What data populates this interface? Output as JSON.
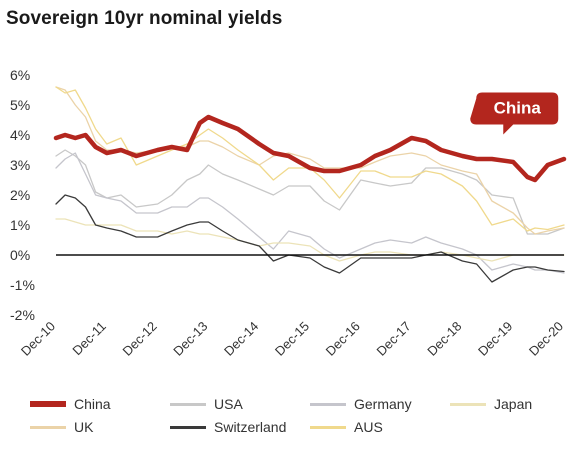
{
  "chart_data": {
    "type": "line",
    "title": "Sovereign 10yr nominal yields",
    "xlabel": "",
    "ylabel": "",
    "y_ticks": [
      "6%",
      "5%",
      "4%",
      "3%",
      "2%",
      "1%",
      "0%",
      "-1%",
      "-2%"
    ],
    "y_tick_values": [
      6,
      5,
      4,
      3,
      2,
      1,
      0,
      -1,
      -2
    ],
    "ylim": [
      -2,
      6
    ],
    "x_ticks": [
      "Dec-10",
      "Dec-11",
      "Dec-12",
      "Dec-13",
      "Dec-14",
      "Dec-15",
      "Dec-16",
      "Dec-17",
      "Dec-18",
      "Dec-19",
      "Dec-20"
    ],
    "xlim": [
      2010.92,
      2020.92
    ],
    "zero_line": true,
    "grid": false,
    "legend_position": "bottom",
    "annotation": {
      "text": "China",
      "series": "China",
      "x": 2020.0,
      "y": 4.75
    },
    "series": [
      {
        "name": "China",
        "color": "#b3261e",
        "width": 4.5,
        "x": [
          2010.92,
          2011.1,
          2011.3,
          2011.5,
          2011.7,
          2011.92,
          2012.2,
          2012.5,
          2012.92,
          2013.2,
          2013.5,
          2013.75,
          2013.92,
          2014.2,
          2014.5,
          2014.92,
          2015.2,
          2015.5,
          2015.92,
          2016.2,
          2016.5,
          2016.92,
          2017.2,
          2017.5,
          2017.92,
          2018.2,
          2018.5,
          2018.92,
          2019.2,
          2019.5,
          2019.92,
          2020.2,
          2020.35,
          2020.6,
          2020.92
        ],
        "y": [
          3.9,
          4.0,
          3.9,
          4.0,
          3.6,
          3.4,
          3.5,
          3.3,
          3.5,
          3.6,
          3.5,
          4.4,
          4.6,
          4.4,
          4.2,
          3.7,
          3.4,
          3.3,
          2.9,
          2.8,
          2.8,
          3.0,
          3.3,
          3.5,
          3.9,
          3.8,
          3.5,
          3.3,
          3.2,
          3.2,
          3.1,
          2.6,
          2.5,
          3.0,
          3.2
        ]
      },
      {
        "name": "USA",
        "color": "#c8c8c8",
        "width": 1.3,
        "x": [
          2010.92,
          2011.1,
          2011.3,
          2011.5,
          2011.7,
          2011.92,
          2012.2,
          2012.5,
          2012.92,
          2013.2,
          2013.5,
          2013.75,
          2013.92,
          2014.2,
          2014.5,
          2014.92,
          2015.2,
          2015.5,
          2015.92,
          2016.2,
          2016.5,
          2016.92,
          2017.2,
          2017.5,
          2017.92,
          2018.2,
          2018.5,
          2018.92,
          2019.2,
          2019.5,
          2019.92,
          2020.2,
          2020.35,
          2020.6,
          2020.92
        ],
        "y": [
          3.3,
          3.5,
          3.3,
          3.0,
          2.1,
          1.9,
          2.0,
          1.6,
          1.7,
          2.0,
          2.5,
          2.7,
          3.0,
          2.7,
          2.5,
          2.2,
          2.0,
          2.3,
          2.3,
          1.8,
          1.5,
          2.5,
          2.4,
          2.3,
          2.4,
          2.9,
          2.9,
          2.7,
          2.5,
          2.0,
          1.9,
          0.7,
          0.7,
          0.7,
          0.9
        ]
      },
      {
        "name": "Germany",
        "color": "#c5c5cc",
        "width": 1.3,
        "x": [
          2010.92,
          2011.1,
          2011.3,
          2011.5,
          2011.7,
          2011.92,
          2012.2,
          2012.5,
          2012.92,
          2013.2,
          2013.5,
          2013.75,
          2013.92,
          2014.2,
          2014.5,
          2014.92,
          2015.2,
          2015.5,
          2015.92,
          2016.2,
          2016.5,
          2016.92,
          2017.2,
          2017.5,
          2017.92,
          2018.2,
          2018.5,
          2018.92,
          2019.2,
          2019.5,
          2019.92,
          2020.2,
          2020.35,
          2020.6,
          2020.92
        ],
        "y": [
          2.9,
          3.2,
          3.4,
          2.7,
          2.0,
          1.9,
          1.8,
          1.4,
          1.4,
          1.6,
          1.6,
          1.9,
          1.9,
          1.6,
          1.2,
          0.6,
          0.2,
          0.8,
          0.6,
          0.2,
          -0.1,
          0.2,
          0.4,
          0.5,
          0.4,
          0.6,
          0.4,
          0.2,
          0.0,
          -0.5,
          -0.3,
          -0.4,
          -0.5,
          -0.5,
          -0.6
        ]
      },
      {
        "name": "Japan",
        "color": "#ece3b8",
        "width": 1.3,
        "x": [
          2010.92,
          2011.1,
          2011.3,
          2011.5,
          2011.7,
          2011.92,
          2012.2,
          2012.5,
          2012.92,
          2013.2,
          2013.5,
          2013.75,
          2013.92,
          2014.2,
          2014.5,
          2014.92,
          2015.2,
          2015.5,
          2015.92,
          2016.2,
          2016.5,
          2016.92,
          2017.2,
          2017.5,
          2017.92,
          2018.2,
          2018.5,
          2018.92,
          2019.2,
          2019.5,
          2019.92,
          2020.2,
          2020.35,
          2020.6,
          2020.92
        ],
        "y": [
          1.2,
          1.2,
          1.1,
          1.0,
          1.0,
          1.0,
          1.0,
          0.8,
          0.8,
          0.7,
          0.8,
          0.7,
          0.7,
          0.6,
          0.5,
          0.3,
          0.4,
          0.4,
          0.3,
          0.0,
          -0.2,
          0.0,
          0.1,
          0.1,
          0.0,
          0.0,
          0.1,
          0.0,
          -0.1,
          -0.2,
          0.0,
          0.0,
          0.0,
          0.0,
          0.0
        ]
      },
      {
        "name": "UK",
        "color": "#ebd3a8",
        "width": 1.3,
        "x": [
          2010.92,
          2011.1,
          2011.3,
          2011.5,
          2011.7,
          2011.92,
          2012.2,
          2012.5,
          2012.92,
          2013.2,
          2013.5,
          2013.75,
          2013.92,
          2014.2,
          2014.5,
          2014.92,
          2015.2,
          2015.5,
          2015.92,
          2016.2,
          2016.5,
          2016.92,
          2017.2,
          2017.5,
          2017.92,
          2018.2,
          2018.5,
          2018.92,
          2019.2,
          2019.5,
          2019.92,
          2020.2,
          2020.35,
          2020.6,
          2020.92
        ],
        "y": [
          5.6,
          5.5,
          5.0,
          4.6,
          3.8,
          3.5,
          3.5,
          3.4,
          3.5,
          3.6,
          3.6,
          3.8,
          3.8,
          3.6,
          3.3,
          3.0,
          3.3,
          3.4,
          3.2,
          2.9,
          2.9,
          2.9,
          3.1,
          3.3,
          3.4,
          3.3,
          3.0,
          2.8,
          2.7,
          1.8,
          1.4,
          0.9,
          0.7,
          0.8,
          0.9
        ]
      },
      {
        "name": "Switzerland",
        "color": "#3a3a3a",
        "width": 1.3,
        "x": [
          2010.92,
          2011.1,
          2011.3,
          2011.5,
          2011.7,
          2011.92,
          2012.2,
          2012.5,
          2012.92,
          2013.2,
          2013.5,
          2013.75,
          2013.92,
          2014.2,
          2014.5,
          2014.92,
          2015.2,
          2015.5,
          2015.92,
          2016.2,
          2016.5,
          2016.92,
          2017.2,
          2017.5,
          2017.92,
          2018.2,
          2018.5,
          2018.92,
          2019.2,
          2019.5,
          2019.92,
          2020.2,
          2020.35,
          2020.6,
          2020.92
        ],
        "y": [
          1.7,
          2.0,
          1.9,
          1.6,
          1.0,
          0.9,
          0.8,
          0.6,
          0.6,
          0.8,
          1.0,
          1.1,
          1.1,
          0.8,
          0.5,
          0.3,
          -0.2,
          0.0,
          -0.1,
          -0.4,
          -0.6,
          -0.1,
          -0.1,
          -0.1,
          -0.1,
          0.0,
          0.1,
          -0.2,
          -0.3,
          -0.9,
          -0.5,
          -0.4,
          -0.4,
          -0.5,
          -0.55
        ]
      },
      {
        "name": "AUS",
        "color": "#f0d98c",
        "width": 1.3,
        "x": [
          2010.92,
          2011.1,
          2011.3,
          2011.5,
          2011.7,
          2011.92,
          2012.2,
          2012.5,
          2012.92,
          2013.2,
          2013.5,
          2013.75,
          2013.92,
          2014.2,
          2014.5,
          2014.92,
          2015.2,
          2015.5,
          2015.92,
          2016.2,
          2016.5,
          2016.92,
          2017.2,
          2017.5,
          2017.92,
          2018.2,
          2018.5,
          2018.92,
          2019.2,
          2019.5,
          2019.92,
          2020.2,
          2020.35,
          2020.6,
          2020.92
        ],
        "y": [
          5.6,
          5.4,
          5.5,
          4.9,
          4.2,
          3.7,
          3.9,
          3.0,
          3.3,
          3.5,
          3.7,
          4.0,
          4.2,
          3.9,
          3.5,
          3.0,
          2.5,
          2.9,
          2.9,
          2.5,
          1.9,
          2.8,
          2.8,
          2.6,
          2.6,
          2.8,
          2.7,
          2.3,
          1.8,
          1.0,
          1.2,
          0.8,
          0.9,
          0.85,
          1.0
        ]
      }
    ]
  },
  "legend": [
    {
      "label": "China",
      "color": "#b3261e",
      "thick": true
    },
    {
      "label": "USA",
      "color": "#c8c8c8",
      "thick": false
    },
    {
      "label": "Germany",
      "color": "#c5c5cc",
      "thick": false
    },
    {
      "label": "Japan",
      "color": "#ece3b8",
      "thick": false
    },
    {
      "label": "UK",
      "color": "#ebd3a8",
      "thick": false
    },
    {
      "label": "Switzerland",
      "color": "#3a3a3a",
      "thick": false
    },
    {
      "label": "AUS",
      "color": "#f0d98c",
      "thick": false
    }
  ]
}
